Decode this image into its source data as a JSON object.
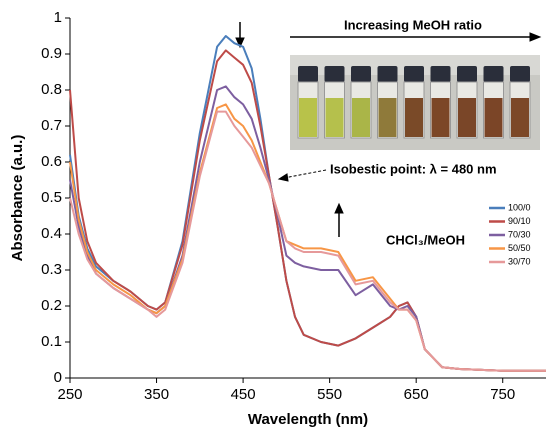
{
  "chart_data": {
    "type": "line",
    "x_label": "Wavelength (nm)",
    "y_label": "Absorbance (a.u.)",
    "x": [
      250,
      260,
      270,
      280,
      300,
      320,
      340,
      350,
      360,
      380,
      400,
      420,
      430,
      440,
      450,
      460,
      470,
      480,
      490,
      500,
      510,
      520,
      540,
      560,
      580,
      600,
      620,
      630,
      640,
      650,
      660,
      680,
      700,
      750,
      800
    ],
    "series": [
      {
        "name": "100/0",
        "color": "#4a7ebb",
        "values": [
          0.62,
          0.45,
          0.36,
          0.31,
          0.27,
          0.24,
          0.2,
          0.19,
          0.21,
          0.38,
          0.68,
          0.92,
          0.95,
          0.93,
          0.92,
          0.86,
          0.72,
          0.56,
          0.42,
          0.27,
          0.17,
          0.12,
          0.1,
          0.09,
          0.11,
          0.14,
          0.17,
          0.2,
          0.21,
          0.17,
          0.08,
          0.03,
          0.025,
          0.02,
          0.02
        ]
      },
      {
        "name": "90/10",
        "color": "#be4b48",
        "values": [
          0.8,
          0.5,
          0.38,
          0.32,
          0.27,
          0.24,
          0.2,
          0.19,
          0.21,
          0.37,
          0.66,
          0.88,
          0.91,
          0.89,
          0.87,
          0.82,
          0.7,
          0.56,
          0.42,
          0.27,
          0.17,
          0.12,
          0.1,
          0.09,
          0.11,
          0.14,
          0.17,
          0.2,
          0.21,
          0.17,
          0.08,
          0.03,
          0.025,
          0.02,
          0.02
        ]
      },
      {
        "name": "70/30",
        "color": "#7d5fa0",
        "values": [
          0.55,
          0.42,
          0.34,
          0.29,
          0.25,
          0.22,
          0.19,
          0.18,
          0.2,
          0.34,
          0.6,
          0.8,
          0.81,
          0.78,
          0.76,
          0.72,
          0.64,
          0.55,
          0.45,
          0.34,
          0.32,
          0.31,
          0.3,
          0.3,
          0.23,
          0.26,
          0.2,
          0.19,
          0.2,
          0.17,
          0.08,
          0.03,
          0.025,
          0.02,
          0.02
        ]
      },
      {
        "name": "50/50",
        "color": "#f79646",
        "values": [
          0.6,
          0.44,
          0.35,
          0.3,
          0.26,
          0.23,
          0.19,
          0.18,
          0.2,
          0.33,
          0.57,
          0.75,
          0.76,
          0.72,
          0.7,
          0.66,
          0.6,
          0.54,
          0.46,
          0.38,
          0.37,
          0.36,
          0.36,
          0.35,
          0.27,
          0.28,
          0.22,
          0.19,
          0.19,
          0.16,
          0.08,
          0.03,
          0.025,
          0.02,
          0.02
        ]
      },
      {
        "name": "30/70",
        "color": "#e6999a",
        "values": [
          0.5,
          0.4,
          0.33,
          0.29,
          0.25,
          0.22,
          0.19,
          0.17,
          0.19,
          0.32,
          0.56,
          0.74,
          0.74,
          0.7,
          0.67,
          0.64,
          0.59,
          0.54,
          0.46,
          0.38,
          0.36,
          0.35,
          0.35,
          0.34,
          0.26,
          0.27,
          0.21,
          0.19,
          0.19,
          0.16,
          0.08,
          0.03,
          0.025,
          0.02,
          0.02
        ]
      }
    ],
    "xlim": [
      250,
      800
    ],
    "xticks": [
      250,
      350,
      450,
      550,
      650,
      750
    ],
    "ylim": [
      0,
      1
    ],
    "yticks": [
      0,
      0.1,
      0.2,
      0.3,
      0.4,
      0.5,
      0.6,
      0.7,
      0.8,
      0.9,
      1
    ],
    "annotations": [
      "Increasing MeOH ratio",
      "Isobestic point: λ = 480 nm",
      "CHCl₃/MeOH"
    ]
  }
}
